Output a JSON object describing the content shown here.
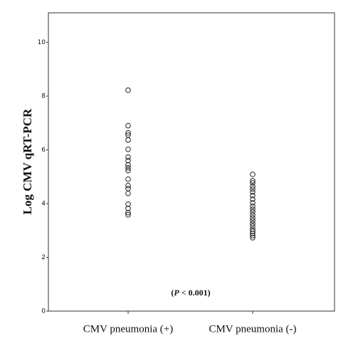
{
  "chart_data": {
    "type": "strip",
    "y_label": "Log CMV qRT-PCR",
    "annotation": [
      "(",
      "P",
      " < 0.001)"
    ],
    "categories": [
      "CMV pneumonia (+)",
      "CMV pneumonia (-)"
    ],
    "series": [
      {
        "values": [
          8.22,
          6.9,
          6.63,
          6.55,
          6.37,
          6.02,
          5.73,
          5.6,
          5.44,
          5.33,
          5.23,
          4.91,
          4.67,
          4.56,
          4.38,
          3.98,
          3.82,
          3.66,
          3.58
        ]
      },
      {
        "values": [
          5.09,
          4.85,
          4.77,
          4.64,
          4.54,
          4.43,
          4.3,
          4.16,
          4.03,
          3.9,
          3.79,
          3.69,
          3.58,
          3.47,
          3.37,
          3.26,
          3.16,
          3.05,
          2.97,
          2.89,
          2.81,
          2.73
        ]
      }
    ],
    "color": "#222222",
    "ylim": [
      0,
      11.1
    ],
    "yticks": [
      0,
      2,
      4,
      6,
      8,
      10
    ],
    "grid": false
  }
}
